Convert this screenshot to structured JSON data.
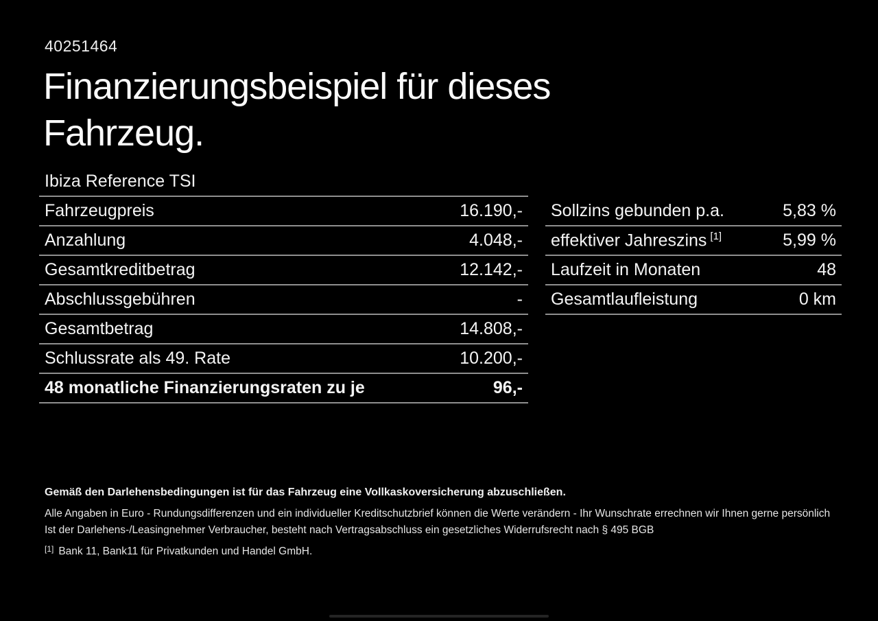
{
  "page": {
    "id_number": "40251464",
    "title": "Finanzierungsbeispiel für dieses Fahrzeug.",
    "vehicle_name": "Ibiza Reference TSI"
  },
  "finance_table": {
    "rows": [
      {
        "label": "Fahrzeugpreis",
        "value": "16.190,-"
      },
      {
        "label": "Anzahlung",
        "value": "4.048,-"
      },
      {
        "label": "Gesamtkreditbetrag",
        "value": "12.142,-"
      },
      {
        "label": "Abschlussgebühren",
        "value": "-"
      },
      {
        "label": "Gesamtbetrag",
        "value": "14.808,-"
      },
      {
        "label": "Schlussrate als 49. Rate",
        "value": "10.200,-"
      },
      {
        "label": "48 monatliche Finanzierungsraten zu je",
        "value": "96,-"
      }
    ]
  },
  "conditions_table": {
    "rows": [
      {
        "label": "Sollzins gebunden p.a.",
        "sup": "",
        "value": "5,83 %"
      },
      {
        "label": "effektiver Jahreszins",
        "sup": "[1]",
        "value": "5,99 %"
      },
      {
        "label": "Laufzeit in Monaten",
        "sup": "",
        "value": "48"
      },
      {
        "label": "Gesamtlaufleistung",
        "sup": "",
        "value": "0 km"
      }
    ]
  },
  "footer": {
    "insurance_note": "Gemäß den Darlehensbedingungen ist für das Fahrzeug eine Vollkaskoversicherung abzuschließen.",
    "disclaimer_1": "Alle Angaben in Euro - Rundungsdifferenzen und ein individueller Kreditschutzbrief können die Werte verändern - Ihr Wunschrate errechnen wir Ihnen gerne persönlich",
    "disclaimer_2": "Ist der Darlehens-/Leasingnehmer Verbraucher, besteht nach Vertragsabschluss ein gesetzliches Widerrufsrecht nach § 495 BGB",
    "footnote_marker": "[1]",
    "footnote_text": "Bank 11, Bank11 für Privatkunden und Handel GmbH."
  },
  "colors": {
    "background": "#000000",
    "text": "#f2f2f2",
    "divider": "#8f8f8f"
  }
}
